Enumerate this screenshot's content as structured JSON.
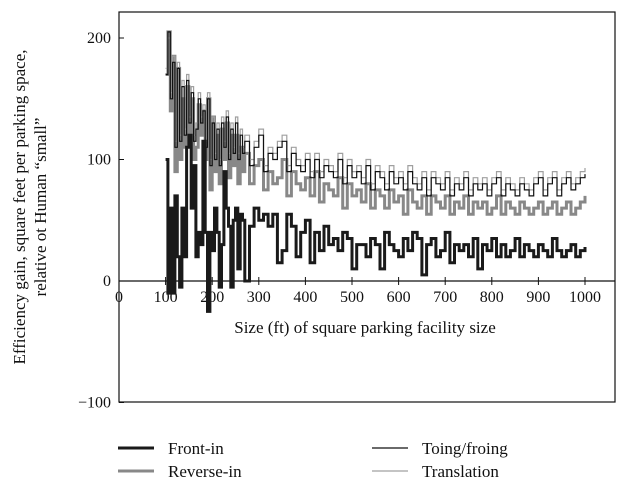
{
  "chart_data": {
    "type": "line",
    "title": "",
    "xlabel": "Size (ft) of square parking facility size",
    "ylabel_lines": [
      "Efficiency gain, square feet per parking space,",
      "relative ot Human “small”"
    ],
    "xlim": [
      0,
      1080
    ],
    "ylim": [
      -100,
      225
    ],
    "x_ticks": [
      0,
      100,
      200,
      300,
      400,
      500,
      600,
      700,
      800,
      900,
      1000
    ],
    "x_tick_labels": [
      "0",
      "100",
      "200",
      "300",
      "400",
      "500",
      "600",
      "700",
      "800",
      "900",
      "1000"
    ],
    "y_ticks": [
      -100,
      0,
      100,
      200
    ],
    "y_tick_labels": [
      "−100",
      "0",
      "100",
      "200"
    ],
    "grid": false,
    "legend_position": "bottom",
    "series": [
      {
        "name": "Front-in",
        "color": "#1a1a1a",
        "x": [
          100,
          105,
          110,
          115,
          120,
          125,
          130,
          135,
          140,
          145,
          150,
          155,
          160,
          165,
          170,
          175,
          180,
          185,
          190,
          195,
          200,
          205,
          210,
          215,
          220,
          225,
          230,
          235,
          240,
          245,
          250,
          255,
          260,
          265,
          270,
          280,
          290,
          300,
          310,
          320,
          330,
          340,
          350,
          360,
          370,
          380,
          390,
          400,
          410,
          420,
          430,
          440,
          450,
          460,
          470,
          480,
          490,
          500,
          510,
          520,
          530,
          540,
          550,
          560,
          570,
          580,
          590,
          600,
          610,
          620,
          630,
          640,
          650,
          660,
          670,
          680,
          690,
          700,
          710,
          720,
          730,
          740,
          750,
          760,
          770,
          780,
          790,
          800,
          810,
          820,
          830,
          840,
          850,
          860,
          870,
          880,
          890,
          900,
          910,
          920,
          930,
          940,
          950,
          960,
          970,
          980,
          990,
          1000
        ],
        "y": [
          100,
          -10,
          60,
          -10,
          70,
          20,
          -5,
          60,
          20,
          110,
          120,
          60,
          95,
          20,
          40,
          30,
          115,
          40,
          -25,
          40,
          25,
          60,
          40,
          -5,
          30,
          90,
          60,
          45,
          -5,
          50,
          60,
          10,
          55,
          50,
          0,
          45,
          60,
          50,
          55,
          45,
          55,
          15,
          25,
          55,
          45,
          20,
          40,
          50,
          15,
          40,
          25,
          45,
          30,
          35,
          25,
          40,
          35,
          10,
          30,
          30,
          20,
          35,
          30,
          10,
          40,
          30,
          25,
          20,
          35,
          25,
          40,
          35,
          5,
          30,
          35,
          20,
          25,
          40,
          15,
          30,
          25,
          30,
          20,
          35,
          10,
          30,
          25,
          35,
          20,
          30,
          20,
          25,
          35,
          20,
          30,
          25,
          20,
          30,
          25,
          20,
          35,
          25,
          20,
          25,
          30,
          20,
          25,
          28
        ]
      },
      {
        "name": "Reverse-in",
        "color": "#888888",
        "x": [
          100,
          105,
          110,
          115,
          120,
          125,
          130,
          135,
          140,
          145,
          150,
          155,
          160,
          165,
          170,
          175,
          180,
          185,
          190,
          195,
          200,
          205,
          210,
          215,
          220,
          225,
          230,
          235,
          240,
          245,
          250,
          255,
          260,
          265,
          270,
          280,
          290,
          300,
          310,
          320,
          330,
          340,
          350,
          360,
          370,
          380,
          390,
          400,
          410,
          420,
          430,
          440,
          450,
          460,
          470,
          480,
          490,
          500,
          510,
          520,
          530,
          540,
          550,
          560,
          570,
          580,
          590,
          600,
          610,
          620,
          630,
          640,
          650,
          660,
          670,
          680,
          690,
          700,
          710,
          720,
          730,
          740,
          750,
          760,
          770,
          780,
          790,
          800,
          810,
          820,
          830,
          840,
          850,
          860,
          870,
          880,
          890,
          900,
          910,
          920,
          930,
          940,
          950,
          960,
          970,
          980,
          990,
          1000
        ],
        "y": [
          170,
          205,
          140,
          185,
          90,
          175,
          100,
          150,
          110,
          160,
          115,
          150,
          100,
          110,
          145,
          120,
          140,
          100,
          150,
          75,
          135,
          90,
          120,
          80,
          125,
          100,
          130,
          85,
          120,
          95,
          120,
          80,
          110,
          90,
          105,
          80,
          95,
          100,
          75,
          90,
          80,
          85,
          100,
          70,
          90,
          80,
          75,
          85,
          70,
          90,
          65,
          80,
          75,
          70,
          85,
          60,
          80,
          70,
          75,
          65,
          80,
          60,
          75,
          70,
          60,
          75,
          65,
          70,
          55,
          75,
          65,
          60,
          70,
          55,
          70,
          65,
          60,
          70,
          55,
          65,
          60,
          70,
          55,
          65,
          60,
          65,
          55,
          60,
          70,
          55,
          65,
          60,
          55,
          65,
          60,
          55,
          60,
          65,
          55,
          60,
          65,
          55,
          60,
          65,
          55,
          60,
          65,
          70
        ]
      },
      {
        "name": "Toing/froing",
        "color": "#111111",
        "x": [
          100,
          105,
          110,
          115,
          120,
          125,
          130,
          135,
          140,
          145,
          150,
          155,
          160,
          165,
          170,
          175,
          180,
          185,
          190,
          195,
          200,
          205,
          210,
          215,
          220,
          225,
          230,
          235,
          240,
          245,
          250,
          255,
          260,
          265,
          270,
          280,
          290,
          300,
          310,
          320,
          330,
          340,
          350,
          360,
          370,
          380,
          390,
          400,
          410,
          420,
          430,
          440,
          450,
          460,
          470,
          480,
          490,
          500,
          510,
          520,
          530,
          540,
          550,
          560,
          570,
          580,
          590,
          600,
          610,
          620,
          630,
          640,
          650,
          660,
          670,
          680,
          690,
          700,
          710,
          720,
          730,
          740,
          750,
          760,
          770,
          780,
          790,
          800,
          810,
          820,
          830,
          840,
          850,
          860,
          870,
          880,
          890,
          900,
          910,
          920,
          930,
          940,
          950,
          960,
          970,
          980,
          990,
          1000
        ],
        "y": [
          170,
          205,
          150,
          180,
          110,
          175,
          115,
          160,
          120,
          165,
          130,
          155,
          115,
          125,
          150,
          130,
          140,
          110,
          150,
          95,
          130,
          100,
          125,
          95,
          130,
          110,
          135,
          100,
          125,
          105,
          130,
          100,
          120,
          105,
          115,
          95,
          110,
          120,
          90,
          105,
          100,
          110,
          115,
          90,
          105,
          95,
          90,
          100,
          85,
          100,
          85,
          95,
          90,
          85,
          100,
          80,
          95,
          85,
          90,
          80,
          95,
          75,
          90,
          85,
          75,
          90,
          80,
          85,
          75,
          90,
          80,
          75,
          85,
          70,
          85,
          80,
          75,
          85,
          70,
          80,
          75,
          85,
          70,
          80,
          75,
          80,
          70,
          80,
          85,
          70,
          80,
          75,
          70,
          80,
          75,
          70,
          80,
          85,
          70,
          80,
          85,
          70,
          80,
          85,
          75,
          80,
          85,
          88
        ]
      },
      {
        "name": "Translation",
        "color": "#a0a0a0",
        "x": [
          100,
          105,
          110,
          115,
          120,
          125,
          130,
          135,
          140,
          145,
          150,
          155,
          160,
          165,
          170,
          175,
          180,
          185,
          190,
          195,
          200,
          205,
          210,
          215,
          220,
          225,
          230,
          235,
          240,
          245,
          250,
          255,
          260,
          265,
          270,
          280,
          290,
          300,
          310,
          320,
          330,
          340,
          350,
          360,
          370,
          380,
          390,
          400,
          410,
          420,
          430,
          440,
          450,
          460,
          470,
          480,
          490,
          500,
          510,
          520,
          530,
          540,
          550,
          560,
          570,
          580,
          590,
          600,
          610,
          620,
          630,
          640,
          650,
          660,
          670,
          680,
          690,
          700,
          710,
          720,
          730,
          740,
          750,
          760,
          770,
          780,
          790,
          800,
          810,
          820,
          830,
          840,
          850,
          860,
          870,
          880,
          890,
          900,
          910,
          920,
          930,
          940,
          950,
          960,
          970,
          980,
          990,
          1000
        ],
        "y": [
          175,
          200,
          155,
          185,
          115,
          180,
          120,
          165,
          125,
          170,
          135,
          160,
          120,
          130,
          155,
          135,
          145,
          115,
          155,
          100,
          135,
          105,
          130,
          100,
          135,
          115,
          140,
          105,
          130,
          110,
          135,
          105,
          125,
          110,
          120,
          100,
          115,
          125,
          95,
          110,
          105,
          115,
          120,
          95,
          110,
          100,
          95,
          105,
          90,
          105,
          90,
          100,
          95,
          90,
          105,
          85,
          100,
          90,
          95,
          85,
          100,
          80,
          95,
          90,
          80,
          95,
          85,
          90,
          80,
          95,
          85,
          80,
          90,
          75,
          90,
          85,
          80,
          90,
          75,
          85,
          80,
          90,
          75,
          85,
          80,
          85,
          75,
          85,
          90,
          75,
          85,
          80,
          75,
          85,
          80,
          75,
          85,
          90,
          75,
          85,
          90,
          75,
          85,
          90,
          80,
          85,
          90,
          93
        ]
      }
    ]
  },
  "legend": {
    "items": [
      {
        "label": "Front-in",
        "color": "#1a1a1a",
        "width": 3
      },
      {
        "label": "Toing/froing",
        "color": "#111111",
        "width": 1.3
      },
      {
        "label": "Reverse-in",
        "color": "#888888",
        "width": 3
      },
      {
        "label": "Translation",
        "color": "#a0a0a0",
        "width": 1.3
      }
    ]
  }
}
